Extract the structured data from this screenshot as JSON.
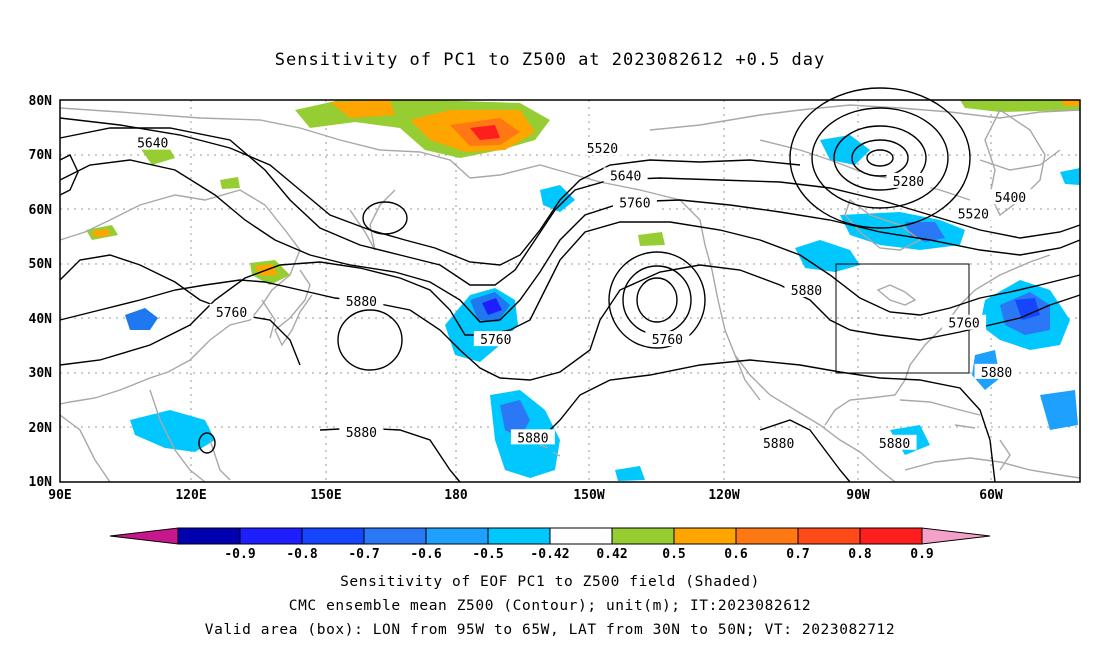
{
  "title": "Sensitivity of PC1 to Z500 at 2023082612 +0.5 day",
  "map": {
    "lat_ticks": [
      "80N",
      "70N",
      "60N",
      "50N",
      "40N",
      "30N",
      "20N",
      "10N"
    ],
    "lon_ticks": [
      "90E",
      "120E",
      "150E",
      "180",
      "150W",
      "120W",
      "90W",
      "60W"
    ],
    "extent": {
      "lon": [
        "90E",
        "50W"
      ],
      "lat": [
        "10N",
        "80N"
      ]
    },
    "valid_box": {
      "lon": [
        "95W",
        "65W"
      ],
      "lat": [
        "30N",
        "50N"
      ]
    },
    "contour_labels": [
      {
        "text": "5640",
        "lon": 110,
        "lat": 72
      },
      {
        "text": "5520",
        "lon": -153,
        "lat": 71
      },
      {
        "text": "5640",
        "lon": -148,
        "lat": 66
      },
      {
        "text": "5760",
        "lon": -146,
        "lat": 61
      },
      {
        "text": "5280",
        "lon": -87,
        "lat": 65
      },
      {
        "text": "5400",
        "lon": -65,
        "lat": 62
      },
      {
        "text": "5520",
        "lon": -73,
        "lat": 59
      },
      {
        "text": "5760",
        "lon": 127,
        "lat": 41
      },
      {
        "text": "5880",
        "lon": 155,
        "lat": 43
      },
      {
        "text": "5760",
        "lon": -176,
        "lat": 36
      },
      {
        "text": "5760",
        "lon": -139,
        "lat": 36
      },
      {
        "text": "5880",
        "lon": -109,
        "lat": 45
      },
      {
        "text": "5760",
        "lon": -75,
        "lat": 39
      },
      {
        "text": "5880",
        "lon": -68,
        "lat": 30
      },
      {
        "text": "5880",
        "lon": 155,
        "lat": 19
      },
      {
        "text": "5880",
        "lon": -168,
        "lat": 18
      },
      {
        "text": "5880",
        "lon": -115,
        "lat": 17
      },
      {
        "text": "5880",
        "lon": -90,
        "lat": 17
      }
    ]
  },
  "colorbar": {
    "labels": [
      "-0.9",
      "-0.8",
      "-0.7",
      "-0.6",
      "-0.5",
      "-0.42",
      "0.42",
      "0.5",
      "0.6",
      "0.7",
      "0.8",
      "0.9"
    ],
    "colors": [
      "#0000b0",
      "#1e1eff",
      "#1446ff",
      "#2a78f5",
      "#1ea0ff",
      "#00c8ff",
      "#ffffff",
      "#96cd32",
      "#ffa500",
      "#ff7814",
      "#ff4b19",
      "#ff1e1e"
    ],
    "low_color": "#c8168c",
    "high_color": "#f5a0c8"
  },
  "captions": [
    "Sensitivity of EOF PC1 to Z500 field (Shaded)",
    "CMC ensemble mean Z500 (Contour); unit(m); IT:2023082612",
    "Valid area (box): LON from 95W to 65W, LAT from 30N to 50N; VT: 2023082712"
  ]
}
